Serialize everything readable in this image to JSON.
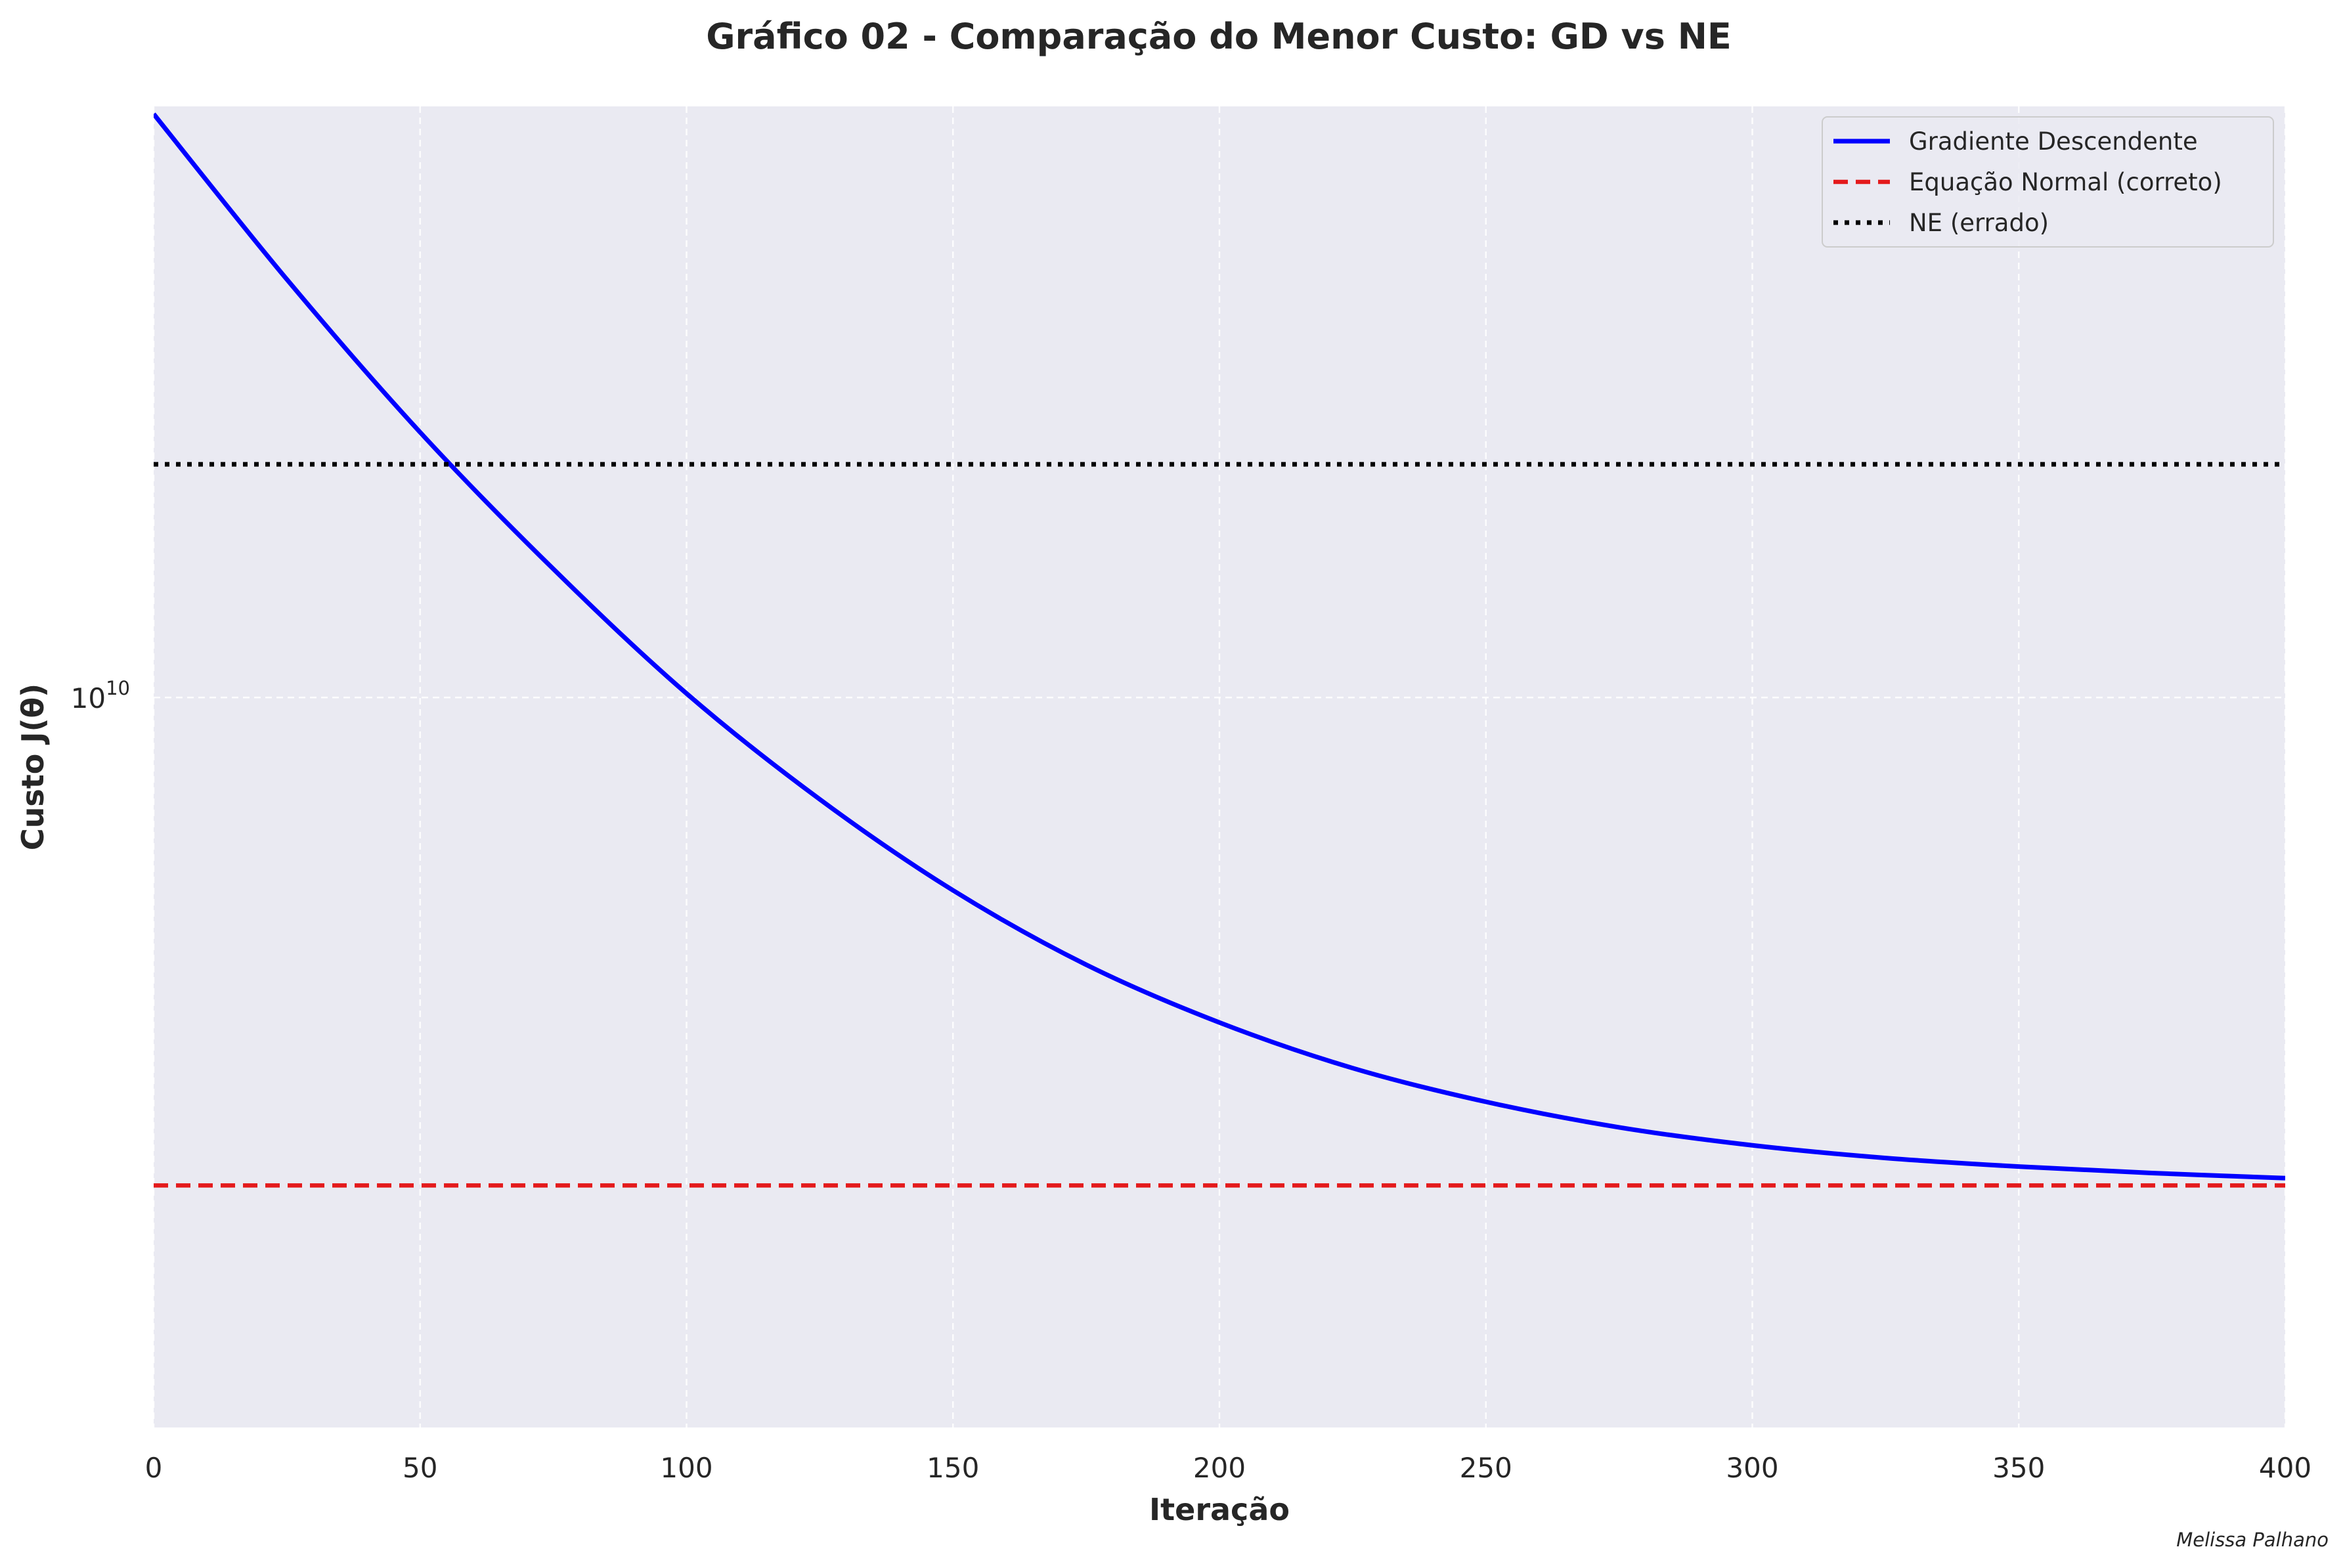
{
  "chart_data": {
    "type": "line",
    "title": "Gráfico 02 - Comparação do Menor Custo: GD vs NE",
    "xlabel": "Iteração",
    "ylabel": "Custo J(θ)",
    "xlim": [
      0,
      400
    ],
    "ylim": [
      4000000000,
      21000000000
    ],
    "yscale": "log",
    "grid": true,
    "x_ticks": [
      0,
      50,
      100,
      150,
      200,
      250,
      300,
      350,
      400
    ],
    "y_ticks": [
      {
        "value": 10000000000,
        "base": "10",
        "exponent": "10"
      }
    ],
    "legend_placement": "top-right",
    "series": [
      {
        "name": "Gradiente Descendente",
        "color": "#0000ff",
        "style": "solid",
        "x": [
          0,
          25,
          50,
          75,
          100,
          125,
          150,
          175,
          200,
          225,
          250,
          275,
          300,
          325,
          350,
          375,
          400
        ],
        "y": [
          20800000000,
          16900000000,
          13950000000,
          11750000000,
          10050000000,
          8800000000,
          7850000000,
          7150000000,
          6650000000,
          6280000000,
          6020000000,
          5830000000,
          5700000000,
          5610000000,
          5550000000,
          5505000000,
          5470000000
        ]
      },
      {
        "name": "Equação Normal (correto)",
        "color": "#e41a1c",
        "style": "dashed",
        "x": [
          0,
          400
        ],
        "y": [
          5420000000,
          5420000000
        ]
      },
      {
        "name": "NE (errado)",
        "color": "#000000",
        "style": "dotted",
        "x": [
          0,
          400
        ],
        "y": [
          13400000000,
          13400000000
        ]
      }
    ],
    "credit": "Melissa Palhano",
    "colors": {
      "plot_background": "#eaeaf2",
      "grid": "#ffffff"
    }
  }
}
